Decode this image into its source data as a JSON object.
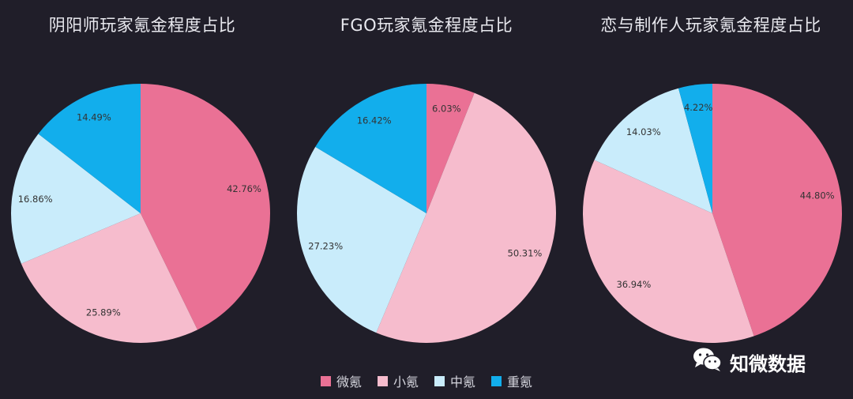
{
  "chart_data": [
    {
      "type": "pie",
      "title": "阴阳师玩家氪金程度占比",
      "slices": [
        {
          "name": "微氪",
          "value": 42.76,
          "label": "42.76%",
          "color": "#ea7195"
        },
        {
          "name": "小氪",
          "value": 25.89,
          "label": "25.89%",
          "color": "#f6bccd"
        },
        {
          "name": "中氪",
          "value": 16.86,
          "label": "16.86%",
          "color": "#c9ecfb"
        },
        {
          "name": "重氪",
          "value": 14.49,
          "label": "14.49%",
          "color": "#12aeec"
        }
      ]
    },
    {
      "type": "pie",
      "title": "FGO玩家氪金程度占比",
      "slices": [
        {
          "name": "微氪",
          "value": 6.03,
          "label": "6.03%",
          "color": "#ea7195"
        },
        {
          "name": "小氪",
          "value": 50.31,
          "label": "50.31%",
          "color": "#f6bccd"
        },
        {
          "name": "中氪",
          "value": 27.23,
          "label": "27.23%",
          "color": "#c9ecfb"
        },
        {
          "name": "重氪",
          "value": 16.42,
          "label": "16.42%",
          "color": "#12aeec"
        }
      ]
    },
    {
      "type": "pie",
      "title": "恋与制作人玩家氪金程度占比",
      "slices": [
        {
          "name": "微氪",
          "value": 44.8,
          "label": "44.80%",
          "color": "#ea7195"
        },
        {
          "name": "小氪",
          "value": 36.94,
          "label": "36.94%",
          "color": "#f6bccd"
        },
        {
          "name": "中氪",
          "value": 14.03,
          "label": "14.03%",
          "color": "#c9ecfb"
        },
        {
          "name": "重氪",
          "value": 4.22,
          "label": "4.22%",
          "color": "#12aeec"
        }
      ]
    }
  ],
  "legend": {
    "placement": "bottom-center",
    "items": [
      {
        "label": "微氪",
        "color": "#ea7195"
      },
      {
        "label": "小氪",
        "color": "#f6bccd"
      },
      {
        "label": "中氪",
        "color": "#c9ecfb"
      },
      {
        "label": "重氪",
        "color": "#12aeec"
      }
    ]
  },
  "watermark": {
    "text": "知微数据",
    "icon": "wechat-icon"
  },
  "colors": {
    "background": "#201e29"
  }
}
